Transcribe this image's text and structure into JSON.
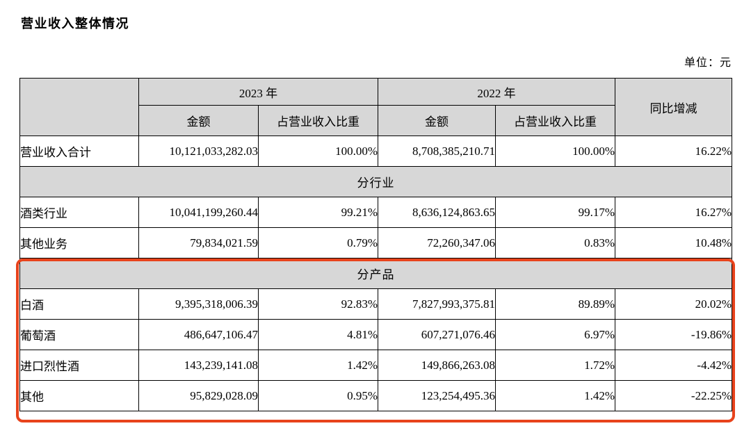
{
  "page": {
    "title": "营业收入整体情况",
    "unit_note": "单位：元"
  },
  "colors": {
    "highlight_red": "#e8431c",
    "header_gray": "#d7d7d7",
    "border_black": "#000000"
  },
  "table": {
    "header": {
      "year_2023": "2023 年",
      "year_2022": "2022 年",
      "yoy_change": "同比增减",
      "amount_2023": "金额",
      "share_2023": "占营业收入比重",
      "amount_2022": "金额",
      "share_2022": "占营业收入比重"
    },
    "rows": [
      {
        "type": "data",
        "label": "营业收入合计",
        "values": [
          "10,121,033,282.03",
          "100.00%",
          "8,708,385,210.71",
          "100.00%",
          "16.22%"
        ]
      },
      {
        "type": "section",
        "label": "分行业"
      },
      {
        "type": "data",
        "label": "酒类行业",
        "values": [
          "10,041,199,260.44",
          "99.21%",
          "8,636,124,863.65",
          "99.17%",
          "16.27%"
        ]
      },
      {
        "type": "data",
        "label": "其他业务",
        "values": [
          "79,834,021.59",
          "0.79%",
          "72,260,347.06",
          "0.83%",
          "10.48%"
        ]
      },
      {
        "type": "section",
        "label": "分产品",
        "highlighted": true
      },
      {
        "type": "data",
        "label": "白酒",
        "values": [
          "9,395,318,006.39",
          "92.83%",
          "7,827,993,375.81",
          "89.89%",
          "20.02%"
        ],
        "highlighted": true
      },
      {
        "type": "data",
        "label": "葡萄酒",
        "values": [
          "486,647,106.47",
          "4.81%",
          "607,271,076.46",
          "6.97%",
          "-19.86%"
        ],
        "highlighted": true
      },
      {
        "type": "data",
        "label": "进口烈性酒",
        "values": [
          "143,239,141.08",
          "1.42%",
          "149,866,263.08",
          "1.72%",
          "-4.42%"
        ],
        "highlighted": true
      },
      {
        "type": "data",
        "label": "其他",
        "values": [
          "95,829,028.09",
          "0.95%",
          "123,254,495.36",
          "1.42%",
          "-22.25%"
        ],
        "highlighted": true
      }
    ]
  },
  "highlight": {
    "target": "分产品 section rows",
    "border_color": "#e8431c"
  }
}
